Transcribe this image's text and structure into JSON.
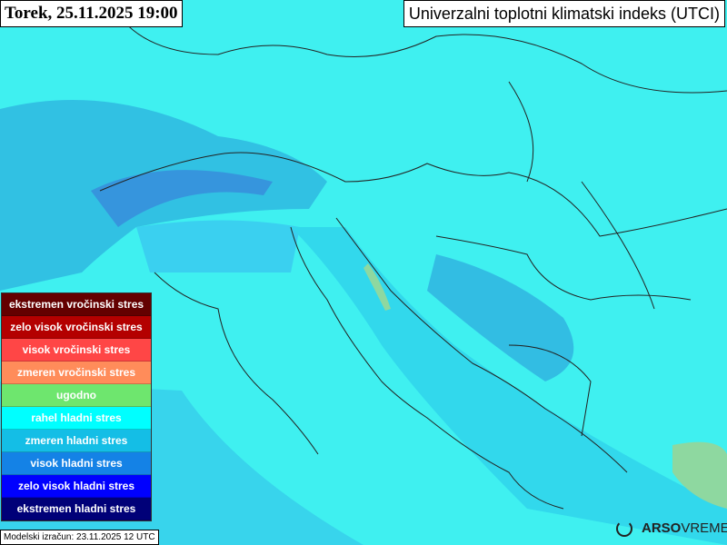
{
  "header": {
    "date_title": "Torek, 25.11.2025 19:00",
    "map_title": "Univerzalni toplotni klimatski indeks (UTCI)"
  },
  "legend": [
    {
      "label": "ekstremen vročinski stres",
      "color": "#640000"
    },
    {
      "label": "zelo visok vročinski stres",
      "color": "#b40000"
    },
    {
      "label": "visok vročinski stres",
      "color": "#ff4646"
    },
    {
      "label": "zmeren vročinski stres",
      "color": "#ff8c5a"
    },
    {
      "label": "ugodno",
      "color": "#6ee66e"
    },
    {
      "label": "rahel hladni stres",
      "color": "#00ffff"
    },
    {
      "label": "zmeren hladni stres",
      "color": "#14bee6"
    },
    {
      "label": "visok hladni stres",
      "color": "#1482e6"
    },
    {
      "label": "zelo visok hladni stres",
      "color": "#0000ff"
    },
    {
      "label": "ekstremen hladni stres",
      "color": "#000078"
    }
  ],
  "footer": {
    "model_run": "Modelski izračun: 23.11.2025 12 UTC",
    "logo_bold": "ARSO",
    "logo_light": "VREME"
  }
}
